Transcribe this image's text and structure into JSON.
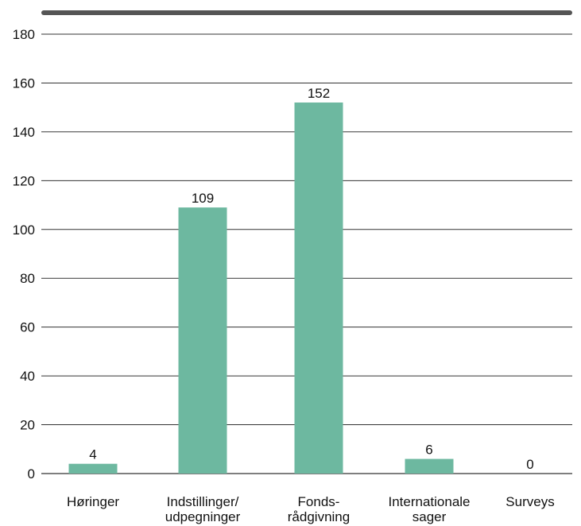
{
  "chart_data": {
    "type": "bar",
    "title": "",
    "xlabel": "",
    "ylabel": "",
    "categories": [
      [
        "Høringer"
      ],
      [
        "Indstillinger/",
        "udpegninger"
      ],
      [
        "Fonds-",
        "rådgivning"
      ],
      [
        "Internationale",
        "sager"
      ],
      [
        "Surveys"
      ]
    ],
    "values": [
      4,
      109,
      152,
      6,
      0
    ],
    "data_labels": [
      "4",
      "109",
      "152",
      "6",
      "0"
    ],
    "ylim": [
      0,
      180
    ],
    "yticks": [
      0,
      20,
      40,
      60,
      80,
      100,
      120,
      140,
      160,
      180
    ],
    "grid": true,
    "legend": "none",
    "colors": {
      "bar": "#6db8a0",
      "grid": "#333333",
      "top_rule": "#555555",
      "text": "#111111"
    }
  }
}
